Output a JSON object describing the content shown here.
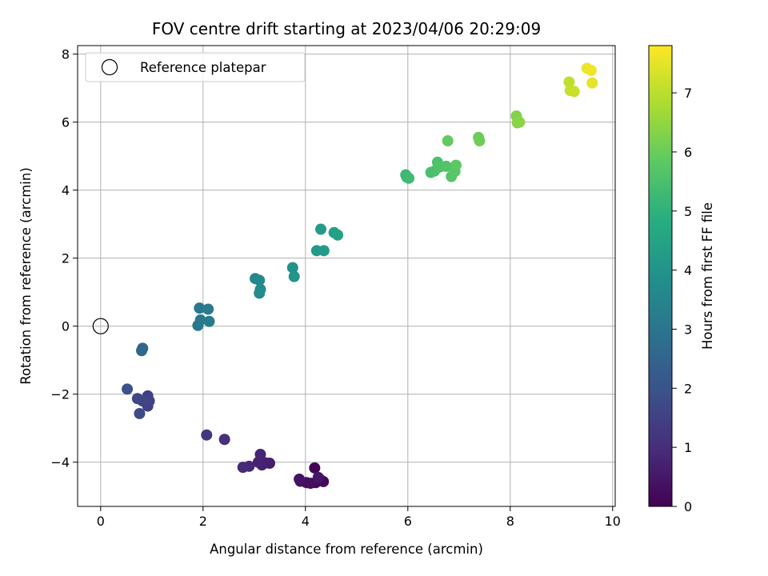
{
  "chart_data": {
    "type": "scatter",
    "title": "FOV centre drift starting at 2023/04/06 20:29:09",
    "xlabel": "Angular distance from reference (arcmin)",
    "ylabel": "Rotation from reference (arcmin)",
    "xlim": [
      -0.45,
      10.05
    ],
    "ylim": [
      -5.3,
      8.25
    ],
    "xticks": [
      0,
      2,
      4,
      6,
      8,
      10
    ],
    "yticks": [
      -4,
      -2,
      0,
      2,
      4,
      6,
      8
    ],
    "grid": true,
    "legend": {
      "placement": "top-left",
      "entries": [
        "Reference platepar"
      ]
    },
    "reference_point": {
      "x": 0,
      "y": 0,
      "label": "Reference platepar"
    },
    "colorbar": {
      "label": "Hours from first FF file",
      "colormap": "viridis",
      "range": [
        0,
        7.8
      ],
      "ticks": [
        0,
        1,
        2,
        3,
        4,
        5,
        6,
        7
      ]
    },
    "points": [
      {
        "x": 4.18,
        "y": -4.17,
        "c": 0.05
      },
      {
        "x": 4.35,
        "y": -4.57,
        "c": 0.1
      },
      {
        "x": 4.28,
        "y": -4.5,
        "c": 0.15
      },
      {
        "x": 4.2,
        "y": -4.6,
        "c": 0.2
      },
      {
        "x": 4.1,
        "y": -4.62,
        "c": 0.25
      },
      {
        "x": 4.02,
        "y": -4.6,
        "c": 0.3
      },
      {
        "x": 3.9,
        "y": -4.56,
        "c": 0.35
      },
      {
        "x": 3.88,
        "y": -4.5,
        "c": 0.4
      },
      {
        "x": 4.25,
        "y": -4.45,
        "c": 0.45
      },
      {
        "x": 3.3,
        "y": -4.03,
        "c": 0.6
      },
      {
        "x": 3.22,
        "y": -4.02,
        "c": 0.65
      },
      {
        "x": 3.15,
        "y": -4.08,
        "c": 0.7
      },
      {
        "x": 3.08,
        "y": -4.0,
        "c": 0.75
      },
      {
        "x": 3.12,
        "y": -3.77,
        "c": 0.8
      },
      {
        "x": 2.9,
        "y": -4.12,
        "c": 0.85
      },
      {
        "x": 2.78,
        "y": -4.15,
        "c": 0.9
      },
      {
        "x": 2.42,
        "y": -3.33,
        "c": 1.05
      },
      {
        "x": 2.07,
        "y": -3.2,
        "c": 1.2
      },
      {
        "x": 0.92,
        "y": -2.05,
        "c": 1.45
      },
      {
        "x": 0.92,
        "y": -2.35,
        "c": 1.5
      },
      {
        "x": 0.95,
        "y": -2.2,
        "c": 1.55
      },
      {
        "x": 0.82,
        "y": -2.2,
        "c": 1.6
      },
      {
        "x": 0.72,
        "y": -2.13,
        "c": 1.65
      },
      {
        "x": 0.76,
        "y": -2.57,
        "c": 1.7
      },
      {
        "x": 0.52,
        "y": -1.85,
        "c": 1.95
      },
      {
        "x": 0.82,
        "y": -0.65,
        "c": 2.55
      },
      {
        "x": 0.8,
        "y": -0.72,
        "c": 2.6
      },
      {
        "x": 1.93,
        "y": 0.53,
        "c": 3.05
      },
      {
        "x": 1.95,
        "y": 0.18,
        "c": 3.1
      },
      {
        "x": 1.9,
        "y": 0.02,
        "c": 3.15
      },
      {
        "x": 2.1,
        "y": 0.5,
        "c": 3.2
      },
      {
        "x": 2.12,
        "y": 0.14,
        "c": 3.25
      },
      {
        "x": 3.02,
        "y": 1.4,
        "c": 3.6
      },
      {
        "x": 3.1,
        "y": 1.35,
        "c": 3.65
      },
      {
        "x": 3.12,
        "y": 1.08,
        "c": 3.7
      },
      {
        "x": 3.1,
        "y": 0.97,
        "c": 3.75
      },
      {
        "x": 3.75,
        "y": 1.72,
        "c": 3.95
      },
      {
        "x": 3.78,
        "y": 1.46,
        "c": 4.0
      },
      {
        "x": 4.3,
        "y": 2.85,
        "c": 4.25
      },
      {
        "x": 4.22,
        "y": 2.22,
        "c": 4.2
      },
      {
        "x": 4.36,
        "y": 2.22,
        "c": 4.25
      },
      {
        "x": 4.56,
        "y": 2.75,
        "c": 4.35
      },
      {
        "x": 4.63,
        "y": 2.68,
        "c": 4.4
      },
      {
        "x": 5.96,
        "y": 4.45,
        "c": 5.2
      },
      {
        "x": 5.98,
        "y": 4.38,
        "c": 5.25
      },
      {
        "x": 6.02,
        "y": 4.35,
        "c": 5.3
      },
      {
        "x": 6.45,
        "y": 4.52,
        "c": 5.45
      },
      {
        "x": 6.52,
        "y": 4.56,
        "c": 5.5
      },
      {
        "x": 6.58,
        "y": 4.82,
        "c": 5.55
      },
      {
        "x": 6.62,
        "y": 4.68,
        "c": 5.6
      },
      {
        "x": 6.75,
        "y": 4.7,
        "c": 5.65
      },
      {
        "x": 6.85,
        "y": 4.4,
        "c": 5.7
      },
      {
        "x": 6.92,
        "y": 4.55,
        "c": 5.75
      },
      {
        "x": 6.94,
        "y": 4.73,
        "c": 5.8
      },
      {
        "x": 6.78,
        "y": 5.45,
        "c": 5.9
      },
      {
        "x": 7.38,
        "y": 5.55,
        "c": 6.0
      },
      {
        "x": 7.4,
        "y": 5.45,
        "c": 6.05
      },
      {
        "x": 8.12,
        "y": 6.18,
        "c": 6.3
      },
      {
        "x": 8.14,
        "y": 5.98,
        "c": 6.35
      },
      {
        "x": 8.18,
        "y": 6.0,
        "c": 6.4
      },
      {
        "x": 9.15,
        "y": 7.18,
        "c": 7.05
      },
      {
        "x": 9.17,
        "y": 6.93,
        "c": 7.1
      },
      {
        "x": 9.25,
        "y": 6.9,
        "c": 7.15
      },
      {
        "x": 9.5,
        "y": 7.58,
        "c": 7.6
      },
      {
        "x": 9.58,
        "y": 7.52,
        "c": 7.65
      },
      {
        "x": 9.6,
        "y": 7.15,
        "c": 7.5
      }
    ]
  }
}
